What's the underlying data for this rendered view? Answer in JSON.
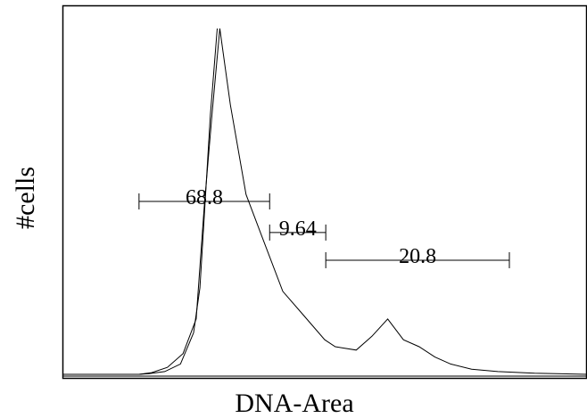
{
  "chart_data": {
    "type": "line",
    "xlabel": "DNA-Area",
    "ylabel": "#cells",
    "xlim": [
      0,
      1000
    ],
    "ylim": [
      0,
      100
    ],
    "grid": false,
    "series": [
      {
        "x": [
          0,
          146,
          165,
          195,
          225,
          250,
          262,
          270,
          282,
          295,
          310,
          325,
          345,
          360,
          385,
          405,
          420,
          430,
          445,
          460,
          480,
          530,
          600,
          700,
          850,
          1000
        ],
        "values": [
          0,
          0,
          0.2,
          0.8,
          3,
          12,
          25,
          45,
          75,
          100,
          85,
          55,
          30,
          10,
          3,
          1.5,
          0.8,
          0.5,
          0.4,
          0.2,
          0.1,
          0.05,
          0.05,
          0.05,
          0.05,
          0
        ]
      },
      {
        "x": [
          146,
          170,
          200,
          230,
          255,
          270,
          285,
          300,
          320,
          350,
          380,
          420,
          460,
          500,
          520,
          560,
          590,
          620,
          650,
          680,
          710,
          740,
          780,
          830,
          900,
          1000
        ],
        "values": [
          0,
          0.5,
          2,
          6,
          16,
          48,
          75,
          100,
          78,
          52,
          40,
          24,
          17,
          10,
          8,
          7,
          11,
          16,
          10,
          8,
          5,
          3,
          1.5,
          0.8,
          0.3,
          0
        ]
      }
    ],
    "gates": [
      {
        "label": "68.8",
        "start": 146,
        "end": 395,
        "level": 50
      },
      {
        "label": "9.64",
        "start": 395,
        "end": 502,
        "level": 41
      },
      {
        "label": "20.8",
        "start": 502,
        "end": 852,
        "level": 33
      }
    ]
  }
}
